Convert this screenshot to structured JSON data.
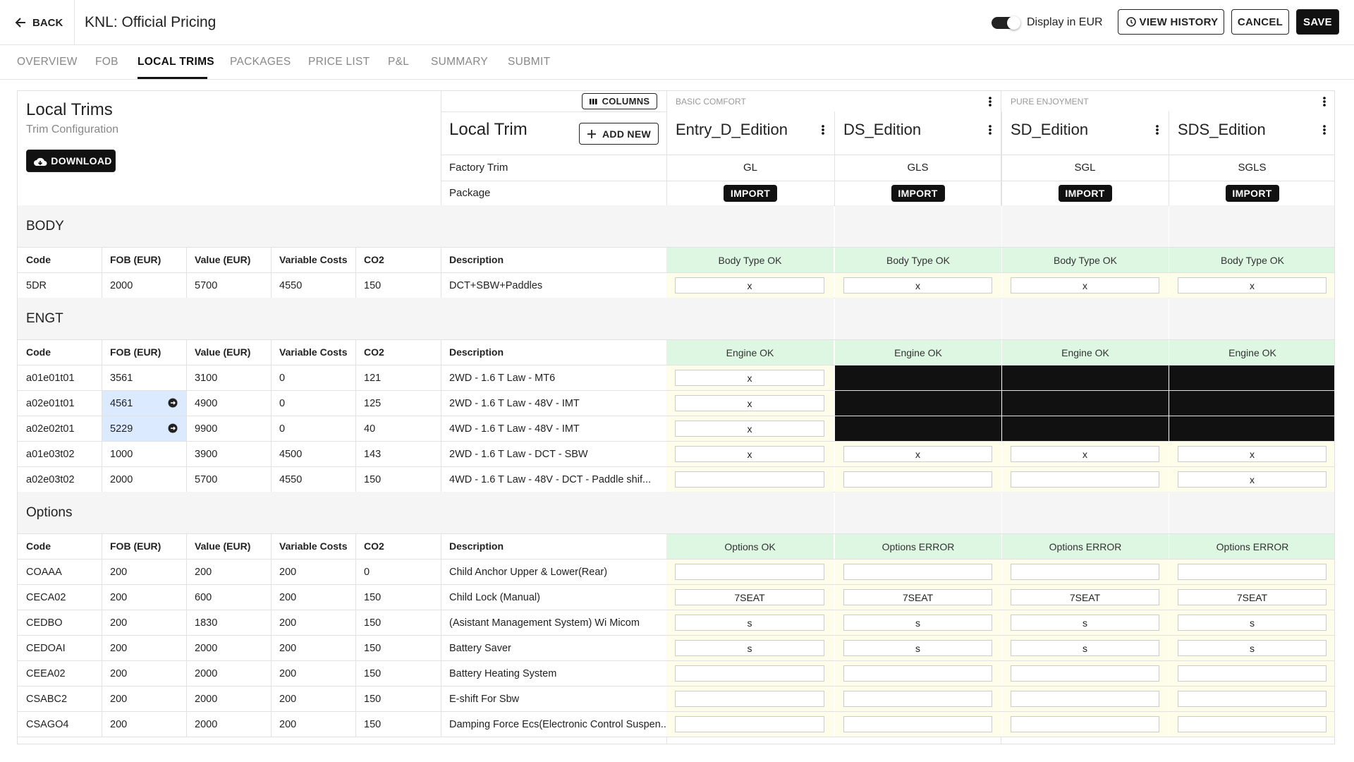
{
  "header": {
    "back": "BACK",
    "title": "KNL: Official Pricing",
    "toggle_label": "Display in EUR",
    "toggle_on": true,
    "buttons": [
      "VIEW HISTORY",
      "CANCEL",
      "SAVE"
    ]
  },
  "tabs": {
    "items": [
      "OVERVIEW",
      "FOB",
      "LOCAL TRIMS",
      "PACKAGES",
      "PRICE LIST",
      "P&L",
      "SUMMARY",
      "SUBMIT"
    ],
    "active": 2
  },
  "panel": {
    "title": "Local Trims",
    "subtitle": "Trim Configuration",
    "download": "DOWNLOAD",
    "columns_button": "COLUMNS",
    "local_trim": "Local Trim",
    "add_new": "ADD NEW",
    "factory_trim": "Factory Trim",
    "package": "Package",
    "import": "IMPORT"
  },
  "groups": [
    {
      "name": "BASIC COMFORT",
      "span": 2
    },
    {
      "name": "PURE ENJOYMENT",
      "span": 2
    }
  ],
  "trims": [
    {
      "name": "Entry_D_Edition",
      "factory": "GL"
    },
    {
      "name": "DS_Edition",
      "factory": "GLS"
    },
    {
      "name": "SD_Edition",
      "factory": "SGL"
    },
    {
      "name": "SDS_Edition",
      "factory": "SGLS"
    }
  ],
  "columns": [
    "Code",
    "FOB (EUR)",
    "Value (EUR)",
    "Variable Costs",
    "CO2",
    "Description"
  ],
  "sections": [
    {
      "title": "BODY",
      "status": [
        "Body Type OK",
        "Body Type OK",
        "Body Type OK",
        "Body Type OK"
      ],
      "rows": [
        {
          "cells": [
            "5DR",
            2000,
            5700,
            4550,
            150,
            "DCT+SBW+Paddles"
          ],
          "trims": [
            "x",
            "x",
            "x",
            "x"
          ]
        }
      ]
    },
    {
      "title": "ENGT",
      "status": [
        "Engine OK",
        "Engine OK",
        "Engine OK",
        "Engine OK"
      ],
      "rows": [
        {
          "cells": [
            "a01e01t01",
            3561,
            3100,
            0,
            121,
            "2WD - 1.6 T Law - MT6"
          ],
          "trims": [
            "x",
            null,
            null,
            null
          ],
          "blocked": [
            1,
            2,
            3
          ]
        },
        {
          "cells": [
            "a02e01t01",
            4561,
            4900,
            0,
            125,
            "2WD - 1.6 T Law - 48V - IMT"
          ],
          "trims": [
            "x",
            null,
            null,
            null
          ],
          "blocked": [
            1,
            2,
            3
          ],
          "highlight": [
            1
          ]
        },
        {
          "cells": [
            "a02e02t01",
            5229,
            9900,
            0,
            40,
            "4WD - 1.6 T Law - 48V - IMT"
          ],
          "trims": [
            "x",
            null,
            null,
            null
          ],
          "blocked": [
            1,
            2,
            3
          ],
          "highlight": [
            1
          ]
        },
        {
          "cells": [
            "a01e03t02",
            1000,
            3900,
            4500,
            143,
            "2WD - 1.6 T Law - DCT - SBW"
          ],
          "trims": [
            "x",
            "x",
            "x",
            "x"
          ]
        },
        {
          "cells": [
            "a02e03t02",
            2000,
            5700,
            4550,
            150,
            "4WD - 1.6 T Law - 48V - DCT - Paddle shif..."
          ],
          "trims": [
            null,
            null,
            null,
            "x"
          ]
        }
      ]
    },
    {
      "title": "Options",
      "status": [
        "Options OK",
        "Options ERROR",
        "Options ERROR",
        "Options ERROR"
      ],
      "rows": [
        {
          "cells": [
            "COAAA",
            200,
            200,
            200,
            0,
            "Child Anchor Upper & Lower(Rear)"
          ],
          "trims": [
            null,
            null,
            null,
            null
          ]
        },
        {
          "cells": [
            "CECA02",
            200,
            600,
            200,
            150,
            "Child Lock (Manual)"
          ],
          "trims": [
            "7SEAT",
            "7SEAT",
            "7SEAT",
            "7SEAT"
          ]
        },
        {
          "cells": [
            "CEDBO",
            200,
            1830,
            200,
            150,
            "(Asistant Management System) Wi Micom"
          ],
          "trims": [
            "s",
            "s",
            "s",
            "s"
          ]
        },
        {
          "cells": [
            "CEDOAI",
            200,
            2000,
            200,
            150,
            "Battery Saver"
          ],
          "trims": [
            "s",
            "s",
            "s",
            "s"
          ]
        },
        {
          "cells": [
            "CEEA02",
            200,
            2000,
            200,
            150,
            "Battery Heating System"
          ],
          "trims": [
            null,
            null,
            null,
            null
          ]
        },
        {
          "cells": [
            "CSABC2",
            200,
            2000,
            200,
            150,
            "E-shift For Sbw"
          ],
          "trims": [
            null,
            null,
            null,
            null
          ]
        },
        {
          "cells": [
            "CSAGO4",
            200,
            2000,
            200,
            150,
            "Damping Force Ecs(Electronic Control Suspen..."
          ],
          "trims": [
            null,
            null,
            null,
            null
          ]
        }
      ]
    }
  ]
}
